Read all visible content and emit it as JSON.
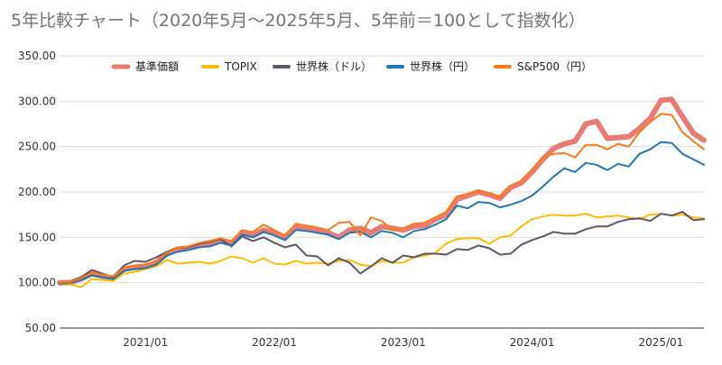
{
  "chart_data": {
    "type": "line",
    "title": "5年比較チャート（2020年5月～2025年5月、5年前＝100として指数化）",
    "xlabel": "",
    "ylabel": "",
    "ylim": [
      50,
      350
    ],
    "y_ticks": [
      "50.00",
      "100.00",
      "150.00",
      "200.00",
      "250.00",
      "300.00",
      "350.00"
    ],
    "x_ticks": [
      "2021/01",
      "2022/01",
      "2023/01",
      "2024/01",
      "2025/01"
    ],
    "grid": "horizontal",
    "legend_position": "top",
    "x": [
      "2020/05",
      "2020/06",
      "2020/07",
      "2020/08",
      "2020/09",
      "2020/10",
      "2020/11",
      "2020/12",
      "2021/01",
      "2021/02",
      "2021/03",
      "2021/04",
      "2021/05",
      "2021/06",
      "2021/07",
      "2021/08",
      "2021/09",
      "2021/10",
      "2021/11",
      "2021/12",
      "2022/01",
      "2022/02",
      "2022/03",
      "2022/04",
      "2022/05",
      "2022/06",
      "2022/07",
      "2022/08",
      "2022/09",
      "2022/10",
      "2022/11",
      "2022/12",
      "2023/01",
      "2023/02",
      "2023/03",
      "2023/04",
      "2023/05",
      "2023/06",
      "2023/07",
      "2023/08",
      "2023/09",
      "2023/10",
      "2023/11",
      "2023/12",
      "2024/01",
      "2024/02",
      "2024/03",
      "2024/04",
      "2024/05",
      "2024/06",
      "2024/07",
      "2024/08",
      "2024/09",
      "2024/10",
      "2024/11",
      "2024/12",
      "2025/01",
      "2025/02",
      "2025/03",
      "2025/04",
      "2025/05"
    ],
    "series": [
      {
        "name": "基準価額",
        "color": "#e67c73",
        "width": 6,
        "values": [
          100,
          100,
          104,
          110,
          107,
          105,
          115,
          117,
          118,
          122,
          132,
          137,
          138,
          141,
          143,
          146,
          143,
          155,
          152,
          158,
          155,
          150,
          162,
          160,
          157,
          155,
          150,
          158,
          160,
          155,
          162,
          160,
          158,
          162,
          163,
          170,
          175,
          192,
          196,
          200,
          197,
          193,
          205,
          210,
          222,
          236,
          248,
          253,
          256,
          275,
          278,
          259,
          260,
          261,
          270,
          281,
          301,
          302,
          283,
          265,
          257
        ]
      },
      {
        "name": "TOPIX",
        "color": "#fbbc04",
        "width": 2,
        "values": [
          99,
          98,
          95,
          104,
          103,
          102,
          110,
          112,
          115,
          118,
          125,
          121,
          122,
          123,
          121,
          124,
          129,
          127,
          122,
          127,
          121,
          120,
          124,
          121,
          122,
          121,
          124,
          125,
          120,
          118,
          124,
          122,
          122,
          128,
          130,
          133,
          143,
          148,
          149,
          149,
          143,
          150,
          152,
          162,
          170,
          173,
          175,
          174,
          174,
          176,
          172,
          173,
          174,
          172,
          170,
          175,
          176,
          174,
          175,
          172,
          171
        ]
      },
      {
        "name": "世界株（ドル）",
        "color": "#5f566c",
        "width": 2,
        "values": [
          100,
          101,
          106,
          114,
          110,
          106,
          119,
          124,
          123,
          128,
          134,
          138,
          139,
          143,
          145,
          148,
          140,
          151,
          146,
          150,
          144,
          139,
          142,
          130,
          129,
          119,
          127,
          122,
          110,
          118,
          127,
          122,
          130,
          128,
          132,
          132,
          131,
          137,
          136,
          141,
          138,
          131,
          132,
          142,
          147,
          151,
          156,
          154,
          154,
          159,
          162,
          162,
          167,
          170,
          171,
          168,
          176,
          174,
          178,
          169,
          170
        ]
      },
      {
        "name": "世界株（円）",
        "color": "#1f77b4",
        "width": 2,
        "values": [
          99,
          100,
          103,
          108,
          106,
          104,
          113,
          115,
          116,
          120,
          130,
          134,
          136,
          139,
          140,
          144,
          141,
          153,
          150,
          156,
          152,
          147,
          158,
          157,
          155,
          153,
          148,
          155,
          156,
          150,
          157,
          155,
          150,
          157,
          159,
          164,
          170,
          185,
          182,
          189,
          188,
          183,
          186,
          190,
          196,
          206,
          217,
          226,
          222,
          232,
          230,
          224,
          231,
          228,
          242,
          247,
          255,
          254,
          242,
          236,
          230
        ]
      },
      {
        "name": "S&P500（円）",
        "color": "#fa7b17",
        "width": 2,
        "values": [
          100,
          101,
          105,
          111,
          109,
          107,
          116,
          119,
          120,
          124,
          133,
          138,
          140,
          144,
          146,
          149,
          146,
          158,
          156,
          164,
          158,
          152,
          165,
          163,
          161,
          158,
          166,
          167,
          152,
          172,
          168,
          158,
          160,
          165,
          166,
          172,
          178,
          195,
          198,
          201,
          198,
          194,
          207,
          212,
          225,
          238,
          242,
          243,
          238,
          252,
          252,
          247,
          253,
          250,
          266,
          277,
          286,
          285,
          266,
          256,
          247
        ]
      }
    ]
  }
}
